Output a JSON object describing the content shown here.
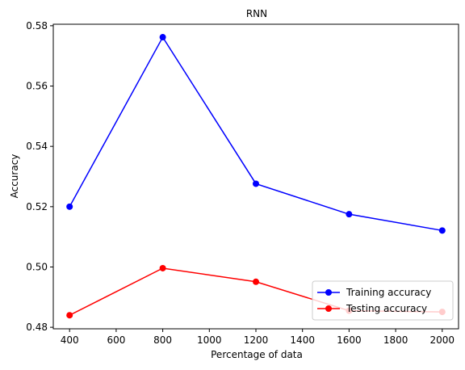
{
  "chart_data": {
    "type": "line",
    "title": "RNN",
    "xlabel": "Percentage of data",
    "ylabel": "Accuracy",
    "x": [
      400,
      800,
      1200,
      1600,
      2000
    ],
    "xlim": [
      330,
      2070
    ],
    "ylim": [
      0.4795,
      0.5805
    ],
    "xticks": [
      400,
      600,
      800,
      1000,
      1200,
      1400,
      1600,
      1800,
      2000
    ],
    "yticks": [
      0.48,
      0.5,
      0.52,
      0.54,
      0.56,
      0.58
    ],
    "ytick_labels": [
      "0.48",
      "0.50",
      "0.52",
      "0.54",
      "0.56",
      "0.58"
    ],
    "grid": false,
    "legend_position": "lower-right",
    "series": [
      {
        "name": "Training accuracy",
        "color": "#0000ff",
        "values": [
          0.52,
          0.5762,
          0.5276,
          0.5175,
          0.5121
        ]
      },
      {
        "name": "Testing accuracy",
        "color": "#ff0000",
        "values": [
          0.484,
          0.4996,
          0.4951,
          0.4855,
          0.4851
        ]
      }
    ]
  }
}
